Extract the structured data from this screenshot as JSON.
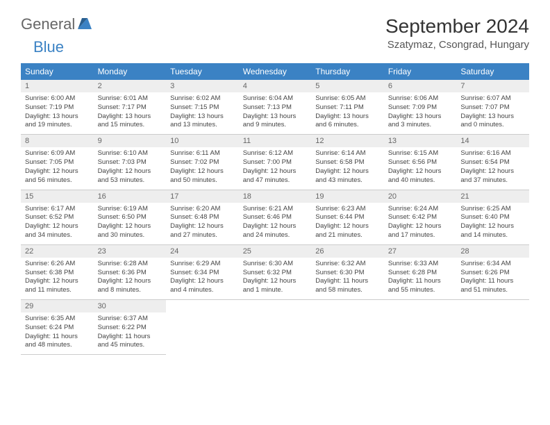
{
  "logo": {
    "text1": "General",
    "text2": "Blue"
  },
  "title": "September 2024",
  "location": "Szatymaz, Csongrad, Hungary",
  "colors": {
    "header_bg": "#3b82c4",
    "header_fg": "#ffffff",
    "daynum_bg": "#eeeeee",
    "border": "#cccccc",
    "text": "#333333"
  },
  "day_labels": [
    "Sunday",
    "Monday",
    "Tuesday",
    "Wednesday",
    "Thursday",
    "Friday",
    "Saturday"
  ],
  "weeks": [
    [
      {
        "n": "1",
        "sr": "6:00 AM",
        "ss": "7:19 PM",
        "dl": "13 hours and 19 minutes."
      },
      {
        "n": "2",
        "sr": "6:01 AM",
        "ss": "7:17 PM",
        "dl": "13 hours and 15 minutes."
      },
      {
        "n": "3",
        "sr": "6:02 AM",
        "ss": "7:15 PM",
        "dl": "13 hours and 13 minutes."
      },
      {
        "n": "4",
        "sr": "6:04 AM",
        "ss": "7:13 PM",
        "dl": "13 hours and 9 minutes."
      },
      {
        "n": "5",
        "sr": "6:05 AM",
        "ss": "7:11 PM",
        "dl": "13 hours and 6 minutes."
      },
      {
        "n": "6",
        "sr": "6:06 AM",
        "ss": "7:09 PM",
        "dl": "13 hours and 3 minutes."
      },
      {
        "n": "7",
        "sr": "6:07 AM",
        "ss": "7:07 PM",
        "dl": "13 hours and 0 minutes."
      }
    ],
    [
      {
        "n": "8",
        "sr": "6:09 AM",
        "ss": "7:05 PM",
        "dl": "12 hours and 56 minutes."
      },
      {
        "n": "9",
        "sr": "6:10 AM",
        "ss": "7:03 PM",
        "dl": "12 hours and 53 minutes."
      },
      {
        "n": "10",
        "sr": "6:11 AM",
        "ss": "7:02 PM",
        "dl": "12 hours and 50 minutes."
      },
      {
        "n": "11",
        "sr": "6:12 AM",
        "ss": "7:00 PM",
        "dl": "12 hours and 47 minutes."
      },
      {
        "n": "12",
        "sr": "6:14 AM",
        "ss": "6:58 PM",
        "dl": "12 hours and 43 minutes."
      },
      {
        "n": "13",
        "sr": "6:15 AM",
        "ss": "6:56 PM",
        "dl": "12 hours and 40 minutes."
      },
      {
        "n": "14",
        "sr": "6:16 AM",
        "ss": "6:54 PM",
        "dl": "12 hours and 37 minutes."
      }
    ],
    [
      {
        "n": "15",
        "sr": "6:17 AM",
        "ss": "6:52 PM",
        "dl": "12 hours and 34 minutes."
      },
      {
        "n": "16",
        "sr": "6:19 AM",
        "ss": "6:50 PM",
        "dl": "12 hours and 30 minutes."
      },
      {
        "n": "17",
        "sr": "6:20 AM",
        "ss": "6:48 PM",
        "dl": "12 hours and 27 minutes."
      },
      {
        "n": "18",
        "sr": "6:21 AM",
        "ss": "6:46 PM",
        "dl": "12 hours and 24 minutes."
      },
      {
        "n": "19",
        "sr": "6:23 AM",
        "ss": "6:44 PM",
        "dl": "12 hours and 21 minutes."
      },
      {
        "n": "20",
        "sr": "6:24 AM",
        "ss": "6:42 PM",
        "dl": "12 hours and 17 minutes."
      },
      {
        "n": "21",
        "sr": "6:25 AM",
        "ss": "6:40 PM",
        "dl": "12 hours and 14 minutes."
      }
    ],
    [
      {
        "n": "22",
        "sr": "6:26 AM",
        "ss": "6:38 PM",
        "dl": "12 hours and 11 minutes."
      },
      {
        "n": "23",
        "sr": "6:28 AM",
        "ss": "6:36 PM",
        "dl": "12 hours and 8 minutes."
      },
      {
        "n": "24",
        "sr": "6:29 AM",
        "ss": "6:34 PM",
        "dl": "12 hours and 4 minutes."
      },
      {
        "n": "25",
        "sr": "6:30 AM",
        "ss": "6:32 PM",
        "dl": "12 hours and 1 minute."
      },
      {
        "n": "26",
        "sr": "6:32 AM",
        "ss": "6:30 PM",
        "dl": "11 hours and 58 minutes."
      },
      {
        "n": "27",
        "sr": "6:33 AM",
        "ss": "6:28 PM",
        "dl": "11 hours and 55 minutes."
      },
      {
        "n": "28",
        "sr": "6:34 AM",
        "ss": "6:26 PM",
        "dl": "11 hours and 51 minutes."
      }
    ],
    [
      {
        "n": "29",
        "sr": "6:35 AM",
        "ss": "6:24 PM",
        "dl": "11 hours and 48 minutes."
      },
      {
        "n": "30",
        "sr": "6:37 AM",
        "ss": "6:22 PM",
        "dl": "11 hours and 45 minutes."
      },
      null,
      null,
      null,
      null,
      null
    ]
  ],
  "labels": {
    "sunrise": "Sunrise:",
    "sunset": "Sunset:",
    "daylight": "Daylight:"
  }
}
